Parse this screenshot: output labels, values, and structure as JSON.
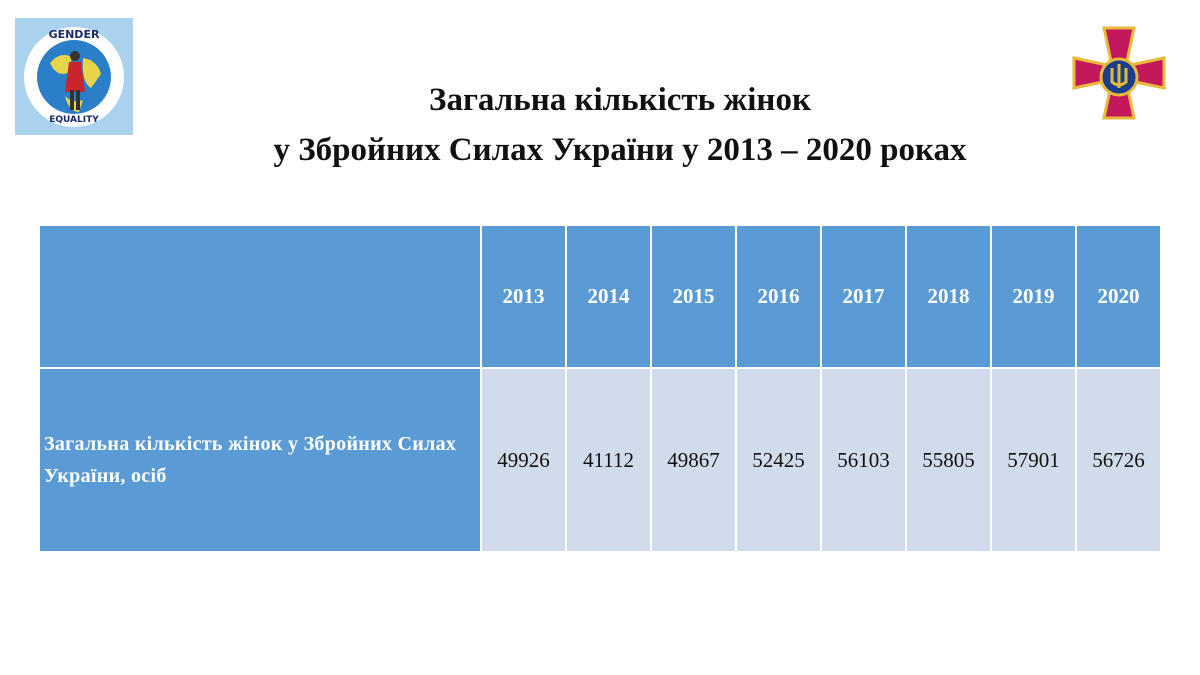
{
  "logo": {
    "top": "GENDER",
    "bottom": "EQUALITY"
  },
  "header": {
    "title": [
      "Загальна кількість жінок",
      "у Збройних Силах України у 2013 – 2020 роках"
    ]
  },
  "table": {
    "columns": [
      2013,
      2014,
      2015,
      2016,
      2017,
      2018,
      2019,
      2020
    ],
    "rows": [
      {
        "label": "Загальна кількість жінок у Збройних Силах України, осіб",
        "values": [
          49926,
          41112,
          49867,
          52425,
          56103,
          55805,
          57901,
          56726
        ]
      }
    ]
  }
}
